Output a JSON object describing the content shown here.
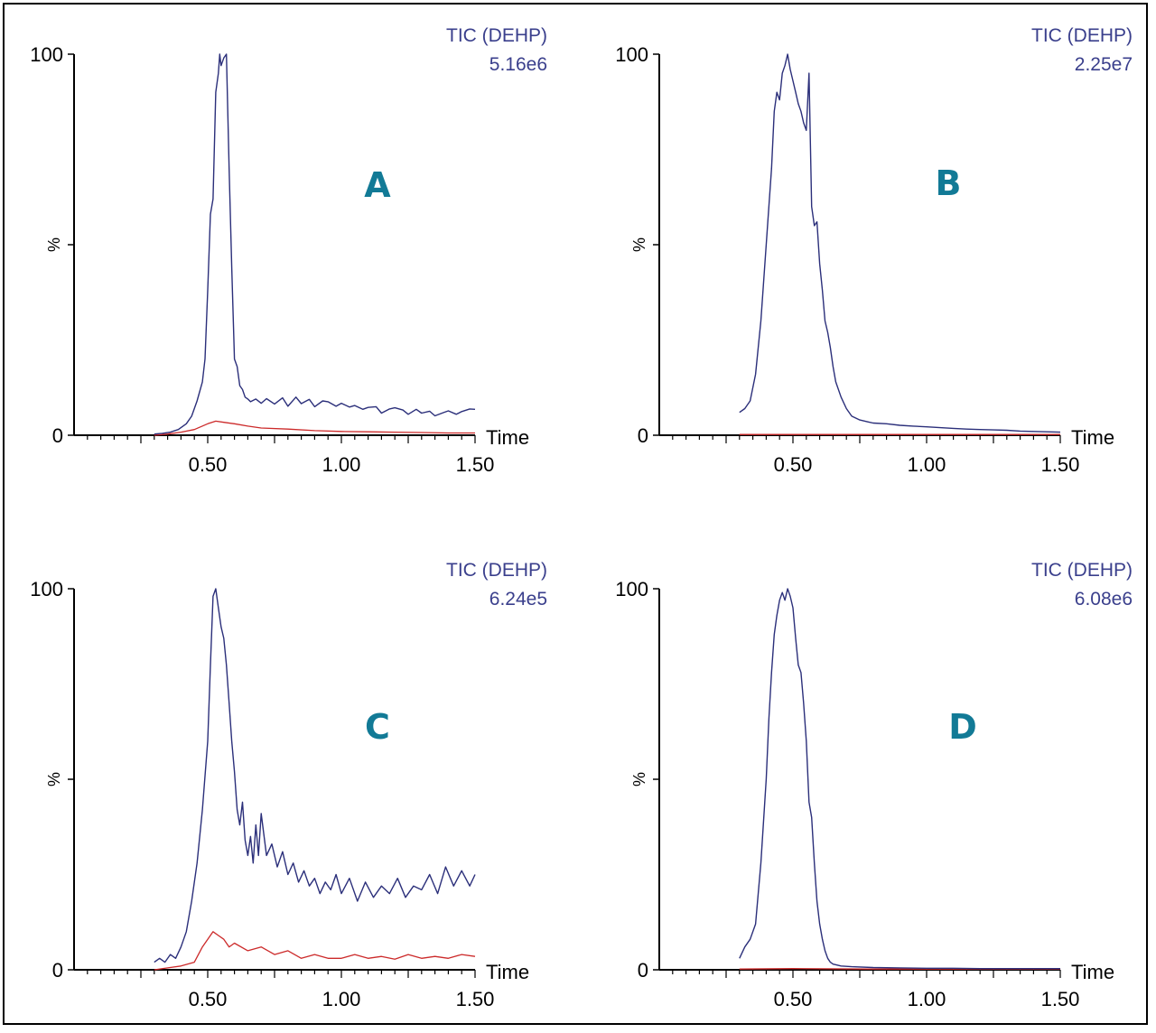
{
  "chart_data": [
    {
      "type": "line",
      "panel_label": "A",
      "trace_name": "TIC (DEHP)",
      "intensity": "5.16e6",
      "ylabel": "%",
      "xlabel": "Time",
      "xlim": [
        0,
        1.5
      ],
      "ylim": [
        0,
        100
      ],
      "x_ticks": [
        "0.50",
        "1.00",
        "1.50"
      ],
      "y_ticks": [
        "0",
        "100"
      ],
      "series": [
        {
          "color": "#2b2f7a",
          "x": [
            0.3,
            0.33,
            0.36,
            0.39,
            0.42,
            0.44,
            0.46,
            0.48,
            0.49,
            0.5,
            0.51,
            0.52,
            0.53,
            0.54,
            0.545,
            0.55,
            0.56,
            0.57,
            0.58,
            0.59,
            0.6,
            0.61,
            0.62,
            0.63,
            0.64,
            0.65,
            0.66,
            0.68,
            0.7,
            0.72,
            0.75,
            0.78,
            0.8,
            0.83,
            0.85,
            0.88,
            0.9,
            0.93,
            0.95,
            0.98,
            1.0,
            1.03,
            1.05,
            1.08,
            1.1,
            1.13,
            1.15,
            1.18,
            1.2,
            1.23,
            1.25,
            1.28,
            1.3,
            1.33,
            1.35,
            1.38,
            1.4,
            1.43,
            1.45,
            1.48,
            1.5
          ],
          "y": [
            0.3,
            0.5,
            0.8,
            1.5,
            3,
            5,
            9,
            14,
            20,
            38,
            58,
            62,
            90,
            95,
            100,
            97,
            99,
            100,
            70,
            44,
            20,
            18,
            13,
            12,
            10,
            9.5,
            8.8,
            9.5,
            8.4,
            9.6,
            8.2,
            9.8,
            7.6,
            10,
            8.3,
            9.4,
            7.5,
            9,
            8.8,
            7.6,
            8.4,
            7.4,
            7.8,
            6.8,
            7.3,
            7.5,
            5.8,
            6.9,
            7.2,
            6.6,
            5.5,
            6.8,
            5.8,
            6.3,
            5.1,
            5.9,
            6.4,
            5.5,
            6.2,
            6.9,
            6.8
          ]
        },
        {
          "color": "#cc2a2a",
          "x": [
            0.3,
            0.35,
            0.4,
            0.45,
            0.5,
            0.53,
            0.56,
            0.6,
            0.65,
            0.7,
            0.8,
            0.9,
            1.0,
            1.1,
            1.2,
            1.3,
            1.4,
            1.5
          ],
          "y": [
            0,
            0.3,
            0.8,
            1.5,
            3,
            3.7,
            3.4,
            3,
            2.4,
            1.9,
            1.6,
            1.2,
            1,
            0.9,
            0.8,
            0.7,
            0.6,
            0.6
          ]
        }
      ]
    },
    {
      "type": "line",
      "panel_label": "B",
      "trace_name": "TIC (DEHP)",
      "intensity": "2.25e7",
      "ylabel": "%",
      "xlabel": "Time",
      "xlim": [
        0,
        1.5
      ],
      "ylim": [
        0,
        100
      ],
      "x_ticks": [
        "0.50",
        "1.00",
        "1.50"
      ],
      "y_ticks": [
        "0",
        "100"
      ],
      "series": [
        {
          "color": "#2b2f7a",
          "x": [
            0.3,
            0.32,
            0.34,
            0.36,
            0.38,
            0.4,
            0.42,
            0.43,
            0.44,
            0.45,
            0.46,
            0.47,
            0.48,
            0.49,
            0.5,
            0.51,
            0.52,
            0.53,
            0.54,
            0.55,
            0.56,
            0.57,
            0.58,
            0.59,
            0.6,
            0.61,
            0.62,
            0.63,
            0.64,
            0.65,
            0.66,
            0.68,
            0.7,
            0.72,
            0.75,
            0.78,
            0.8,
            0.85,
            0.9,
            0.95,
            1.0,
            1.05,
            1.1,
            1.15,
            1.2,
            1.25,
            1.3,
            1.35,
            1.4,
            1.45,
            1.5
          ],
          "y": [
            6,
            7,
            9,
            16,
            30,
            50,
            70,
            85,
            90,
            88,
            95,
            97,
            100,
            96,
            93,
            90,
            87,
            85,
            82,
            80,
            95,
            60,
            55,
            56,
            45,
            38,
            30,
            27,
            23,
            18,
            14,
            10,
            7,
            5,
            4,
            3.5,
            3.2,
            3,
            2.6,
            2.4,
            2.2,
            2,
            1.8,
            1.6,
            1.5,
            1.4,
            1.3,
            1.1,
            1,
            0.9,
            0.8
          ]
        },
        {
          "color": "#cc2a2a",
          "x": [
            0.3,
            0.5,
            0.8,
            1.1,
            1.5
          ],
          "y": [
            0.2,
            0.2,
            0.2,
            0.2,
            0.2
          ]
        }
      ]
    },
    {
      "type": "line",
      "panel_label": "C",
      "trace_name": "TIC (DEHP)",
      "intensity": "6.24e5",
      "ylabel": "%",
      "xlabel": "Time",
      "xlim": [
        0,
        1.5
      ],
      "ylim": [
        0,
        100
      ],
      "x_ticks": [
        "0.50",
        "1.00",
        "1.50"
      ],
      "y_ticks": [
        "0",
        "100"
      ],
      "series": [
        {
          "color": "#2b2f7a",
          "x": [
            0.3,
            0.32,
            0.34,
            0.36,
            0.38,
            0.4,
            0.42,
            0.44,
            0.46,
            0.48,
            0.5,
            0.51,
            0.52,
            0.53,
            0.54,
            0.55,
            0.56,
            0.57,
            0.58,
            0.59,
            0.6,
            0.61,
            0.62,
            0.63,
            0.64,
            0.65,
            0.66,
            0.67,
            0.68,
            0.69,
            0.7,
            0.72,
            0.74,
            0.76,
            0.78,
            0.8,
            0.82,
            0.84,
            0.86,
            0.88,
            0.9,
            0.92,
            0.94,
            0.96,
            0.98,
            1.0,
            1.03,
            1.06,
            1.09,
            1.12,
            1.15,
            1.18,
            1.21,
            1.24,
            1.27,
            1.3,
            1.33,
            1.36,
            1.39,
            1.42,
            1.45,
            1.48,
            1.5
          ],
          "y": [
            2,
            3,
            2,
            4,
            3,
            6,
            10,
            18,
            28,
            42,
            60,
            80,
            98,
            100,
            95,
            90,
            87,
            80,
            70,
            60,
            52,
            42,
            38,
            44,
            34,
            30,
            35,
            28,
            38,
            30,
            41,
            30,
            33,
            27,
            31,
            25,
            28,
            23,
            26,
            22,
            24,
            20,
            23,
            21,
            25,
            20,
            24,
            18,
            23,
            19,
            22,
            20,
            24,
            19,
            22,
            21,
            25,
            20,
            27,
            22,
            26,
            22,
            25
          ]
        },
        {
          "color": "#cc2a2a",
          "x": [
            0.3,
            0.35,
            0.4,
            0.45,
            0.48,
            0.5,
            0.52,
            0.54,
            0.56,
            0.58,
            0.6,
            0.65,
            0.7,
            0.75,
            0.8,
            0.85,
            0.9,
            0.95,
            1.0,
            1.05,
            1.1,
            1.15,
            1.2,
            1.25,
            1.3,
            1.35,
            1.4,
            1.45,
            1.5
          ],
          "y": [
            0,
            0.5,
            1,
            2,
            6,
            8,
            10,
            9,
            8,
            6,
            7,
            5,
            6,
            4,
            5,
            3,
            4,
            3,
            3,
            4,
            3,
            3.5,
            2.8,
            4,
            3,
            3.5,
            3,
            4,
            3.5
          ]
        }
      ]
    },
    {
      "type": "line",
      "panel_label": "D",
      "trace_name": "TIC (DEHP)",
      "intensity": "6.08e6",
      "ylabel": "%",
      "xlabel": "Time",
      "xlim": [
        0,
        1.5
      ],
      "ylim": [
        0,
        100
      ],
      "x_ticks": [
        "0.50",
        "1.00",
        "1.50"
      ],
      "y_ticks": [
        "0",
        "100"
      ],
      "series": [
        {
          "color": "#2b2f7a",
          "x": [
            0.3,
            0.32,
            0.34,
            0.36,
            0.38,
            0.4,
            0.41,
            0.42,
            0.43,
            0.44,
            0.45,
            0.46,
            0.47,
            0.48,
            0.49,
            0.5,
            0.51,
            0.52,
            0.53,
            0.54,
            0.55,
            0.56,
            0.57,
            0.58,
            0.59,
            0.6,
            0.61,
            0.62,
            0.63,
            0.64,
            0.65,
            0.68,
            0.72,
            0.8,
            0.9,
            1.0,
            1.1,
            1.2,
            1.3,
            1.4,
            1.5
          ],
          "y": [
            3,
            6,
            8,
            12,
            28,
            50,
            66,
            78,
            88,
            93,
            97,
            99,
            97,
            100,
            98,
            95,
            87,
            80,
            78,
            70,
            60,
            44,
            40,
            28,
            18,
            12,
            8,
            5,
            3,
            2,
            1.5,
            1,
            0.8,
            0.6,
            0.5,
            0.4,
            0.4,
            0.3,
            0.3,
            0.3,
            0.3
          ]
        },
        {
          "color": "#cc2a2a",
          "x": [
            0.3,
            0.5,
            0.8,
            1.1,
            1.5
          ],
          "y": [
            0.2,
            0.3,
            0.2,
            0.2,
            0.2
          ]
        }
      ]
    }
  ]
}
